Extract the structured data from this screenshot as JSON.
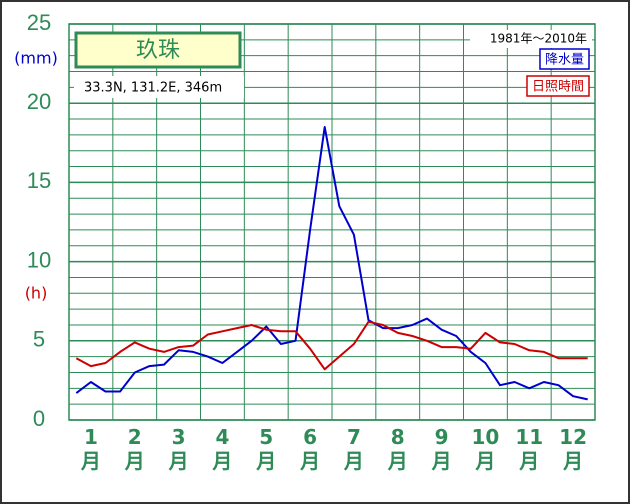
{
  "chart_data": {
    "type": "line",
    "title": "玖珠",
    "subtitle": "33.3N,  131.2E,  346m",
    "period": "1981年〜2010年",
    "y_label": "(mm)",
    "y2_label": "(h)",
    "categories": [
      null,
      "1月",
      null,
      null,
      "2月",
      null,
      null,
      "3月",
      null,
      null,
      "4月",
      null,
      null,
      "5月",
      null,
      null,
      "6月",
      null,
      null,
      "7月",
      null,
      null,
      "8月",
      null,
      null,
      "9月",
      null,
      null,
      "10月",
      null,
      null,
      "11月",
      null,
      null,
      "12月",
      null
    ],
    "series": [
      {
        "name": "降水量",
        "color": "#0000cc",
        "values": [
          1.7,
          2.4,
          1.8,
          1.8,
          3.0,
          3.4,
          3.5,
          4.4,
          4.3,
          4.0,
          3.6,
          4.3,
          5.0,
          5.9,
          4.8,
          5.0,
          12,
          18.5,
          13.5,
          11.7,
          6.3,
          5.8,
          5.8,
          6.0,
          6.4,
          5.7,
          5.3,
          4.3,
          3.6,
          2.2,
          2.4,
          2.0,
          2.4,
          2.2,
          1.5,
          1.3
        ]
      },
      {
        "name": "日照時間",
        "color": "#cc0000",
        "values": [
          3.9,
          3.4,
          3.6,
          4.3,
          4.9,
          4.5,
          4.3,
          4.6,
          4.7,
          5.4,
          5.6,
          5.8,
          6.0,
          5.7,
          5.6,
          5.6,
          4.5,
          3.2,
          4.0,
          4.8,
          6.2,
          6.0,
          5.5,
          5.3,
          5.0,
          4.6,
          4.6,
          4.5,
          5.5,
          4.9,
          4.8,
          4.4,
          4.3,
          3.9,
          3.9,
          3.9
        ]
      }
    ],
    "ylim": [
      0,
      25
    ],
    "yticks": [
      0,
      5,
      10,
      15,
      20,
      25
    ],
    "minor_grid": 1,
    "grid": true
  }
}
